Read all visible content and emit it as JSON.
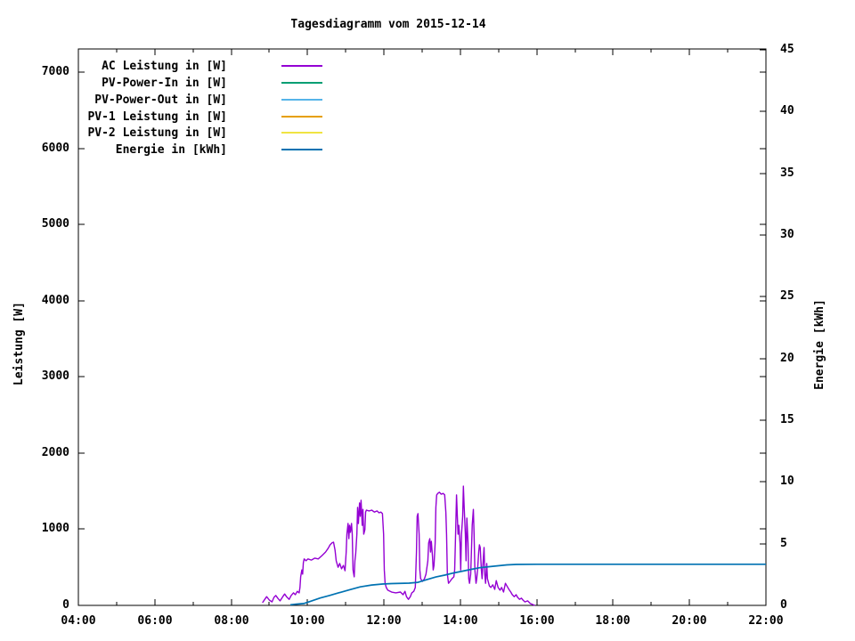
{
  "background_color": "#ffffff",
  "text_color": "#000000",
  "chart_data": {
    "type": "line",
    "title": "Tagesdiagramm vom 2015-12-14",
    "xlabel": "",
    "ylabel": "Leistung [W]",
    "y2label": "Energie [kWh]",
    "x_axis": {
      "range_hours": [
        4,
        22
      ],
      "major_tick_hours": [
        4,
        6,
        8,
        10,
        12,
        14,
        16,
        18,
        20,
        22
      ],
      "major_tick_labels": [
        "04:00",
        "06:00",
        "08:00",
        "10:00",
        "12:00",
        "14:00",
        "16:00",
        "18:00",
        "20:00",
        "22:00"
      ],
      "minor_tick_hours": [
        5,
        7,
        9,
        11,
        13,
        15,
        17,
        19,
        21
      ]
    },
    "y_axis": {
      "label": "Leistung [W]",
      "ticks": [
        0,
        1000,
        2000,
        3000,
        4000,
        5000,
        6000,
        7000
      ],
      "range": [
        0,
        7300
      ]
    },
    "y2_axis": {
      "label": "Energie [kWh]",
      "ticks": [
        0,
        5,
        10,
        15,
        20,
        25,
        30,
        35,
        40,
        45
      ],
      "range": [
        0,
        45.1
      ]
    },
    "grid": "off",
    "legend_position": "top-left",
    "series": [
      {
        "name": "AC Leistung in [W]",
        "color": "#9400d3",
        "axis": "left",
        "points": [
          [
            8.82,
            35
          ],
          [
            8.88,
            80
          ],
          [
            8.93,
            115
          ],
          [
            9.0,
            70
          ],
          [
            9.07,
            45
          ],
          [
            9.12,
            105
          ],
          [
            9.17,
            130
          ],
          [
            9.22,
            95
          ],
          [
            9.28,
            60
          ],
          [
            9.35,
            115
          ],
          [
            9.4,
            150
          ],
          [
            9.45,
            115
          ],
          [
            9.52,
            80
          ],
          [
            9.57,
            130
          ],
          [
            9.63,
            165
          ],
          [
            9.68,
            140
          ],
          [
            9.73,
            185
          ],
          [
            9.78,
            165
          ],
          [
            9.8,
            235
          ],
          [
            9.82,
            375
          ],
          [
            9.85,
            465
          ],
          [
            9.87,
            410
          ],
          [
            9.89,
            560
          ],
          [
            9.91,
            610
          ],
          [
            9.96,
            585
          ],
          [
            10.01,
            610
          ],
          [
            10.1,
            595
          ],
          [
            10.19,
            620
          ],
          [
            10.28,
            610
          ],
          [
            10.38,
            655
          ],
          [
            10.47,
            700
          ],
          [
            10.54,
            750
          ],
          [
            10.59,
            795
          ],
          [
            10.64,
            820
          ],
          [
            10.68,
            830
          ],
          [
            10.72,
            725
          ],
          [
            10.75,
            585
          ],
          [
            10.8,
            500
          ],
          [
            10.84,
            550
          ],
          [
            10.89,
            480
          ],
          [
            10.94,
            525
          ],
          [
            10.98,
            455
          ],
          [
            11.01,
            700
          ],
          [
            11.03,
            935
          ],
          [
            11.06,
            1075
          ],
          [
            11.08,
            875
          ],
          [
            11.1,
            1050
          ],
          [
            11.12,
            960
          ],
          [
            11.15,
            1075
          ],
          [
            11.17,
            935
          ],
          [
            11.19,
            465
          ],
          [
            11.22,
            375
          ],
          [
            11.24,
            585
          ],
          [
            11.26,
            680
          ],
          [
            11.29,
            935
          ],
          [
            11.31,
            1285
          ],
          [
            11.33,
            1075
          ],
          [
            11.36,
            1345
          ],
          [
            11.38,
            1170
          ],
          [
            11.4,
            1380
          ],
          [
            11.43,
            1050
          ],
          [
            11.45,
            1260
          ],
          [
            11.47,
            935
          ],
          [
            11.5,
            995
          ],
          [
            11.52,
            1225
          ],
          [
            11.54,
            1250
          ],
          [
            11.61,
            1240
          ],
          [
            11.68,
            1250
          ],
          [
            11.75,
            1225
          ],
          [
            11.82,
            1240
          ],
          [
            11.87,
            1215
          ],
          [
            11.92,
            1225
          ],
          [
            11.96,
            1205
          ],
          [
            11.99,
            935
          ],
          [
            12.01,
            465
          ],
          [
            12.03,
            290
          ],
          [
            12.06,
            235
          ],
          [
            12.1,
            200
          ],
          [
            12.2,
            175
          ],
          [
            12.31,
            165
          ],
          [
            12.43,
            175
          ],
          [
            12.5,
            140
          ],
          [
            12.55,
            185
          ],
          [
            12.59,
            115
          ],
          [
            12.64,
            80
          ],
          [
            12.69,
            115
          ],
          [
            12.73,
            165
          ],
          [
            12.78,
            185
          ],
          [
            12.82,
            235
          ],
          [
            12.85,
            700
          ],
          [
            12.87,
            1170
          ],
          [
            12.89,
            1205
          ],
          [
            12.92,
            935
          ],
          [
            12.94,
            465
          ],
          [
            12.96,
            350
          ],
          [
            13.01,
            315
          ],
          [
            13.06,
            350
          ],
          [
            13.1,
            410
          ],
          [
            13.15,
            585
          ],
          [
            13.17,
            820
          ],
          [
            13.2,
            875
          ],
          [
            13.22,
            700
          ],
          [
            13.24,
            840
          ],
          [
            13.27,
            645
          ],
          [
            13.29,
            465
          ],
          [
            13.31,
            525
          ],
          [
            13.34,
            820
          ],
          [
            13.36,
            1285
          ],
          [
            13.38,
            1450
          ],
          [
            13.41,
            1470
          ],
          [
            13.45,
            1485
          ],
          [
            13.5,
            1460
          ],
          [
            13.55,
            1470
          ],
          [
            13.59,
            1450
          ],
          [
            13.62,
            1225
          ],
          [
            13.64,
            935
          ],
          [
            13.66,
            410
          ],
          [
            13.69,
            290
          ],
          [
            13.73,
            315
          ],
          [
            13.78,
            350
          ],
          [
            13.83,
            375
          ],
          [
            13.85,
            465
          ],
          [
            13.87,
            820
          ],
          [
            13.9,
            1450
          ],
          [
            13.92,
            1170
          ],
          [
            13.94,
            935
          ],
          [
            13.96,
            1050
          ],
          [
            13.99,
            820
          ],
          [
            14.01,
            465
          ],
          [
            14.03,
            935
          ],
          [
            14.06,
            1170
          ],
          [
            14.08,
            1565
          ],
          [
            14.1,
            1285
          ],
          [
            14.13,
            935
          ],
          [
            14.15,
            585
          ],
          [
            14.17,
            1145
          ],
          [
            14.2,
            820
          ],
          [
            14.22,
            350
          ],
          [
            14.24,
            290
          ],
          [
            14.27,
            410
          ],
          [
            14.29,
            700
          ],
          [
            14.31,
            1050
          ],
          [
            14.34,
            1260
          ],
          [
            14.36,
            935
          ],
          [
            14.38,
            465
          ],
          [
            14.41,
            290
          ],
          [
            14.43,
            350
          ],
          [
            14.45,
            465
          ],
          [
            14.48,
            700
          ],
          [
            14.5,
            795
          ],
          [
            14.52,
            760
          ],
          [
            14.55,
            465
          ],
          [
            14.57,
            350
          ],
          [
            14.59,
            525
          ],
          [
            14.62,
            760
          ],
          [
            14.64,
            410
          ],
          [
            14.66,
            290
          ],
          [
            14.69,
            550
          ],
          [
            14.71,
            350
          ],
          [
            14.76,
            255
          ],
          [
            14.8,
            235
          ],
          [
            14.85,
            270
          ],
          [
            14.9,
            210
          ],
          [
            14.94,
            325
          ],
          [
            14.99,
            235
          ],
          [
            15.04,
            200
          ],
          [
            15.08,
            235
          ],
          [
            15.13,
            175
          ],
          [
            15.18,
            290
          ],
          [
            15.22,
            255
          ],
          [
            15.27,
            210
          ],
          [
            15.32,
            175
          ],
          [
            15.36,
            140
          ],
          [
            15.41,
            115
          ],
          [
            15.46,
            140
          ],
          [
            15.5,
            105
          ],
          [
            15.55,
            80
          ],
          [
            15.6,
            95
          ],
          [
            15.64,
            70
          ],
          [
            15.69,
            45
          ],
          [
            15.76,
            60
          ],
          [
            15.83,
            25
          ],
          [
            15.9,
            10
          ],
          [
            15.95,
            0
          ]
        ]
      },
      {
        "name": "PV-Power-In in [W]",
        "color": "#009e73",
        "axis": "left",
        "points": []
      },
      {
        "name": "PV-Power-Out in [W]",
        "color": "#56b4e9",
        "axis": "left",
        "points": []
      },
      {
        "name": "PV-1 Leistung in [W]",
        "color": "#e69f00",
        "axis": "left",
        "points": []
      },
      {
        "name": "PV-2 Leistung in [W]",
        "color": "#f0e442",
        "axis": "left",
        "points": []
      },
      {
        "name": "Energie in [kWh]",
        "color": "#0072b2",
        "axis": "right",
        "points": [
          [
            9.55,
            0.05
          ],
          [
            9.7,
            0.1
          ],
          [
            9.9,
            0.15
          ],
          [
            10.05,
            0.3
          ],
          [
            10.33,
            0.6
          ],
          [
            10.57,
            0.8
          ],
          [
            10.8,
            1.0
          ],
          [
            11.08,
            1.25
          ],
          [
            11.38,
            1.5
          ],
          [
            11.68,
            1.65
          ],
          [
            11.96,
            1.73
          ],
          [
            12.2,
            1.77
          ],
          [
            12.66,
            1.8
          ],
          [
            12.89,
            1.87
          ],
          [
            13.13,
            2.1
          ],
          [
            13.36,
            2.3
          ],
          [
            13.59,
            2.45
          ],
          [
            13.83,
            2.63
          ],
          [
            14.06,
            2.78
          ],
          [
            14.29,
            2.92
          ],
          [
            14.52,
            3.06
          ],
          [
            14.76,
            3.14
          ],
          [
            14.99,
            3.21
          ],
          [
            15.22,
            3.28
          ],
          [
            15.46,
            3.32
          ],
          [
            16.0,
            3.33
          ],
          [
            22.0,
            3.33
          ]
        ]
      }
    ]
  }
}
